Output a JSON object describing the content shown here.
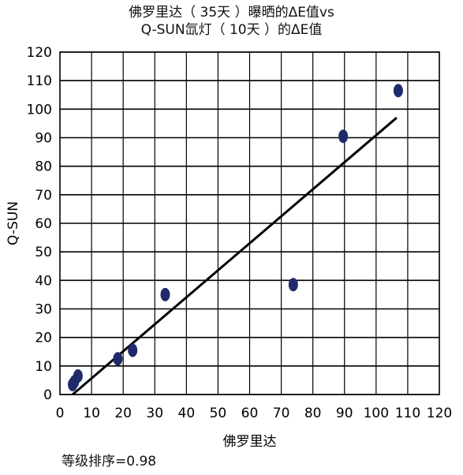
{
  "chart_data": {
    "type": "scatter",
    "title_lines": [
      "佛罗里达（ 35天 ）曝晒的ΔE值vs",
      "Q-SUN氙灯（ 10天 ）的ΔE值"
    ],
    "xlabel": "佛罗里达",
    "ylabel": "Q-SUN",
    "xlim": [
      0,
      120
    ],
    "ylim": [
      0,
      120
    ],
    "xticks": [
      0,
      10,
      20,
      30,
      40,
      50,
      60,
      70,
      80,
      90,
      100,
      110,
      120
    ],
    "yticks": [
      0,
      10,
      20,
      30,
      40,
      50,
      60,
      70,
      80,
      90,
      100,
      110,
      120
    ],
    "grid": "horizontal and vertical",
    "legend": "none",
    "points": [
      {
        "x": 4,
        "y": 3.5
      },
      {
        "x": 4.6,
        "y": 4.5
      },
      {
        "x": 5.7,
        "y": 6.5
      },
      {
        "x": 18.3,
        "y": 12.5
      },
      {
        "x": 23,
        "y": 15.5
      },
      {
        "x": 33.3,
        "y": 35
      },
      {
        "x": 73.8,
        "y": 38.5
      },
      {
        "x": 89.6,
        "y": 90.5
      },
      {
        "x": 107,
        "y": 106.5
      }
    ],
    "trendline": {
      "x": [
        4,
        106.5
      ],
      "y": [
        0,
        97
      ]
    },
    "point_color": "#1f2a6b",
    "line_color": "#000000"
  },
  "footnote": "等级排序=0.98"
}
